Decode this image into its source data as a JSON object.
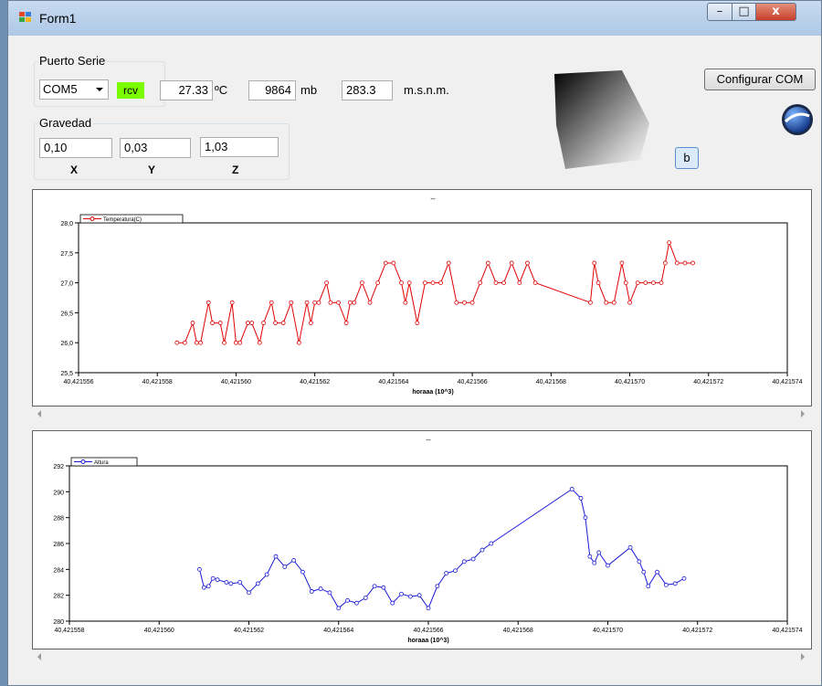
{
  "window": {
    "title": "Form1",
    "min_glyph": "–",
    "max_glyph": "□",
    "close_glyph": "x"
  },
  "puerto": {
    "group_label": "Puerto Serie",
    "port_value": "COM5",
    "rcv_label": "rcv",
    "rcv_color": "#7cfc00",
    "temp_value": "27.33",
    "temp_unit": "ºC",
    "pressure_value": "9864",
    "pressure_unit": "mb",
    "alt_value": "283.3",
    "alt_unit": "m.s.n.m."
  },
  "gravedad": {
    "group_label": "Gravedad",
    "x_value": "0,10",
    "y_value": "0,03",
    "z_value": "1,03",
    "x_label": "X",
    "y_label": "Y",
    "z_label": "Z"
  },
  "configurar_button": "Configurar COM",
  "b_button": "b",
  "icons": {
    "globe": "google-earth-globe-icon",
    "cube": "rotating-cube-render"
  },
  "chart_data": [
    {
      "type": "line",
      "title": "--",
      "xlabel": "horaaa (10^3)",
      "ylabel": "",
      "color": "#e00000",
      "series": [
        {
          "name": "Temperatura(C)"
        }
      ],
      "xlim": [
        40.421556,
        40.421574
      ],
      "ylim": [
        25.5,
        28.0
      ],
      "xticks": [
        "40,421556",
        "40,421558",
        "40,421560",
        "40,421562",
        "40,421564",
        "40,421566",
        "40,421568",
        "40,421570",
        "40,421572",
        "40,421574"
      ],
      "yticks": [
        "25,5",
        "26,0",
        "26,5",
        "27,0",
        "27,5",
        "28,0"
      ],
      "x": [
        40.4215585,
        40.4215587,
        40.4215589,
        40.421559,
        40.4215591,
        40.4215593,
        40.4215594,
        40.4215596,
        40.4215597,
        40.4215599,
        40.42156,
        40.4215601,
        40.4215603,
        40.4215604,
        40.4215606,
        40.4215607,
        40.4215609,
        40.421561,
        40.4215612,
        40.4215614,
        40.4215616,
        40.4215618,
        40.4215619,
        40.421562,
        40.4215621,
        40.4215623,
        40.4215624,
        40.4215626,
        40.4215628,
        40.4215629,
        40.421563,
        40.4215632,
        40.4215634,
        40.4215636,
        40.4215638,
        40.421564,
        40.4215642,
        40.4215643,
        40.4215644,
        40.4215646,
        40.4215648,
        40.421565,
        40.4215652,
        40.4215654,
        40.4215656,
        40.4215658,
        40.421566,
        40.4215662,
        40.4215664,
        40.4215666,
        40.4215668,
        40.421567,
        40.4215672,
        40.4215674,
        40.4215676,
        40.421569,
        40.4215691,
        40.4215692,
        40.4215694,
        40.4215696,
        40.4215698,
        40.4215699,
        40.42157,
        40.4215702,
        40.4215704,
        40.4215706,
        40.4215708,
        40.4215709,
        40.421571,
        40.4215712,
        40.4215714,
        40.4215716
      ],
      "y": [
        26.0,
        26.0,
        26.33,
        26.0,
        26.0,
        26.67,
        26.33,
        26.33,
        26.0,
        26.67,
        26.0,
        26.0,
        26.33,
        26.33,
        26.0,
        26.33,
        26.67,
        26.33,
        26.33,
        26.67,
        26.0,
        26.67,
        26.33,
        26.67,
        26.67,
        27.0,
        26.67,
        26.67,
        26.33,
        26.67,
        26.67,
        27.0,
        26.67,
        27.0,
        27.33,
        27.33,
        27.0,
        26.67,
        27.0,
        26.33,
        27.0,
        27.0,
        27.0,
        27.33,
        26.67,
        26.67,
        26.67,
        27.0,
        27.33,
        27.0,
        27.0,
        27.33,
        27.0,
        27.33,
        27.0,
        26.67,
        27.33,
        27.0,
        26.67,
        26.67,
        27.33,
        27.0,
        26.67,
        27.0,
        27.0,
        27.0,
        27.0,
        27.33,
        27.67,
        27.33,
        27.33,
        27.33
      ]
    },
    {
      "type": "line",
      "title": "--",
      "xlabel": "horaaa (10^3)",
      "ylabel": "",
      "color": "#1a1ad6",
      "series": [
        {
          "name": "Altura"
        }
      ],
      "xlim": [
        40.421558,
        40.421574
      ],
      "ylim": [
        280,
        292
      ],
      "xticks": [
        "40,421558",
        "40,421560",
        "40,421562",
        "40,421564",
        "40,421566",
        "40,421568",
        "40,421570",
        "40,421572",
        "40,421574"
      ],
      "yticks": [
        "280",
        "282",
        "284",
        "286",
        "288",
        "290",
        "292"
      ],
      "x": [
        40.4215609,
        40.421561,
        40.4215611,
        40.4215612,
        40.4215613,
        40.4215615,
        40.4215616,
        40.4215618,
        40.421562,
        40.4215622,
        40.4215624,
        40.4215626,
        40.4215628,
        40.421563,
        40.4215632,
        40.4215634,
        40.4215636,
        40.4215638,
        40.421564,
        40.4215642,
        40.4215644,
        40.4215646,
        40.4215648,
        40.421565,
        40.4215652,
        40.4215654,
        40.4215656,
        40.4215658,
        40.421566,
        40.4215662,
        40.4215664,
        40.4215666,
        40.4215668,
        40.421567,
        40.4215672,
        40.4215674,
        40.4215692,
        40.4215694,
        40.4215695,
        40.4215696,
        40.4215697,
        40.4215698,
        40.42157,
        40.4215705,
        40.4215707,
        40.4215708,
        40.4215709,
        40.4215711,
        40.4215713,
        40.4215715,
        40.4215717
      ],
      "y": [
        284.0,
        282.6,
        282.7,
        283.3,
        283.2,
        283.0,
        282.9,
        283.0,
        282.2,
        282.9,
        283.6,
        285.0,
        284.2,
        284.7,
        283.8,
        282.3,
        282.5,
        282.2,
        281.0,
        281.6,
        281.4,
        281.8,
        282.7,
        282.6,
        281.4,
        282.1,
        281.9,
        282.0,
        281.0,
        282.7,
        283.7,
        283.9,
        284.6,
        284.8,
        285.5,
        286.0,
        290.2,
        289.5,
        288.0,
        285.0,
        284.5,
        285.3,
        284.3,
        285.7,
        284.6,
        283.8,
        282.7,
        283.8,
        282.8,
        282.9,
        283.3
      ]
    }
  ]
}
